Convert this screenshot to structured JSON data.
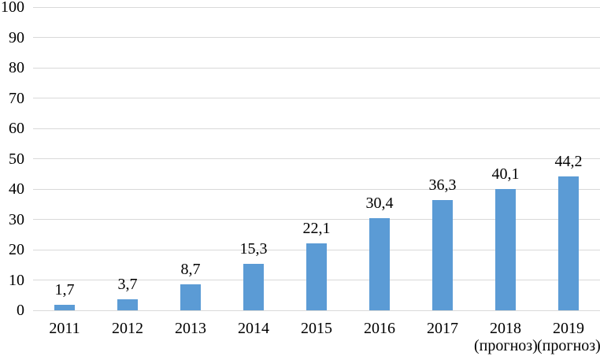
{
  "chart_data": {
    "type": "bar",
    "title": "",
    "xlabel": "",
    "ylabel": "",
    "categories": [
      "2011",
      "2012",
      "2013",
      "2014",
      "2015",
      "2016",
      "2017",
      "2018",
      "2019"
    ],
    "category_sublabels": [
      "",
      "",
      "",
      "",
      "",
      "",
      "",
      "(прогноз)",
      "(прогноз)"
    ],
    "values": [
      1.7,
      3.7,
      8.7,
      15.3,
      22.1,
      30.4,
      36.3,
      40.1,
      44.2
    ],
    "value_labels": [
      "1,7",
      "3,7",
      "8,7",
      "15,3",
      "22,1",
      "30,4",
      "36,3",
      "40,1",
      "44,2"
    ],
    "ylim": [
      0,
      100
    ],
    "y_ticks": [
      0,
      10,
      20,
      30,
      40,
      50,
      60,
      70,
      80,
      90,
      100
    ],
    "y_tick_labels": [
      "0",
      "10",
      "20",
      "30",
      "40",
      "50",
      "60",
      "70",
      "80",
      "90",
      "100"
    ],
    "grid": true,
    "legend": "none",
    "bar_color": "#5b9bd5",
    "gridline_color": "#d9d9d9",
    "text_color": "#000000",
    "background_color": "#ffffff"
  }
}
